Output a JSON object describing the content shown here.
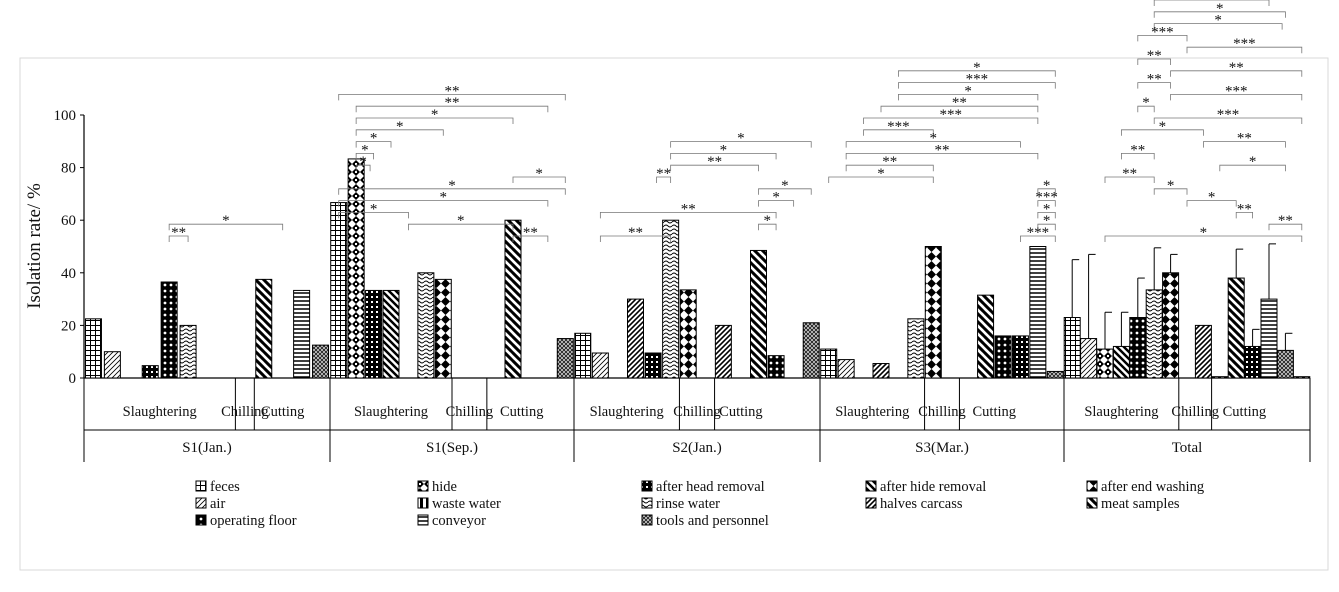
{
  "chart_data": {
    "type": "bar",
    "title": "",
    "ylabel": "Isolation rate/ %",
    "xlabel": "",
    "ylim": [
      0,
      100
    ],
    "yticks": [
      "0",
      "20",
      "40",
      "60",
      "80",
      "100"
    ],
    "legend_position": "bottom",
    "series_names": [
      "feces",
      "hide",
      "after head removal",
      "after hide removal",
      "after end washing",
      "air",
      "waste water",
      "rinse water",
      "halves carcass",
      "meat samples",
      "operating floor",
      "conveyor",
      "tools and personnel"
    ],
    "series_colors": [
      "#000000",
      "#000000",
      "#000000",
      "#000000",
      "#000000",
      "#000000",
      "#000000",
      "#000000",
      "#000000",
      "#000000",
      "#000000",
      "#000000",
      "#000000"
    ],
    "groups": [
      {
        "name": "S1(Jan.)",
        "stages": [
          {
            "name": "Slaughtering",
            "span": [
              0,
              7
            ]
          },
          {
            "name": "Chilling",
            "span": [
              8,
              8
            ]
          },
          {
            "name": "Cutting",
            "span": [
              9,
              11
            ]
          }
        ],
        "bars": [
          {
            "series": 0,
            "value": 22.5
          },
          {
            "series": 5,
            "value": 10
          },
          null,
          {
            "series": 2,
            "value": 4.7
          },
          {
            "series": 10,
            "value": 36.5
          },
          {
            "series": 7,
            "value": 20
          },
          null,
          null,
          null,
          {
            "series": 9,
            "value": 37.5
          },
          null,
          {
            "series": 11,
            "value": 33.3
          },
          {
            "series": 12,
            "value": 12.5
          }
        ],
        "significance": [
          {
            "from": 4,
            "to": 10,
            "label": "*"
          },
          {
            "from": 4,
            "to": 5,
            "label": "**"
          }
        ]
      },
      {
        "name": "S1(Sep.)",
        "stages": [
          {
            "name": "Slaughtering",
            "span": [
              0,
              6
            ]
          },
          {
            "name": "Chilling",
            "span": [
              7,
              8
            ]
          },
          {
            "name": "Cutting",
            "span": [
              9,
              12
            ]
          }
        ],
        "bars": [
          {
            "series": 0,
            "value": 66.7
          },
          {
            "series": 1,
            "value": 83.3
          },
          {
            "series": 2,
            "value": 33.3
          },
          {
            "series": 3,
            "value": 33.3
          },
          null,
          {
            "series": 7,
            "value": 40
          },
          {
            "series": 4,
            "value": 37.5
          },
          null,
          null,
          null,
          {
            "series": 9,
            "value": 60
          },
          null,
          null,
          {
            "series": 12,
            "value": 15
          }
        ],
        "significance": [
          {
            "from": 0,
            "to": 13,
            "label": "**"
          },
          {
            "from": 1,
            "to": 12,
            "label": "**"
          },
          {
            "from": 1,
            "to": 10,
            "label": "*"
          },
          {
            "from": 1,
            "to": 6,
            "label": "*"
          },
          {
            "from": 1,
            "to": 3,
            "label": "*"
          },
          {
            "from": 1,
            "to": 2,
            "label": "*"
          },
          {
            "from": 1,
            "to": 1.8,
            "label": "*"
          },
          {
            "from": 10,
            "to": 13,
            "label": "*"
          },
          {
            "from": 0,
            "to": 13,
            "label": "*"
          },
          {
            "from": 0,
            "to": 12,
            "label": "*"
          },
          {
            "from": 0,
            "to": 4,
            "label": "*"
          },
          {
            "from": 4,
            "to": 10,
            "label": "*"
          },
          {
            "from": 10,
            "to": 12,
            "label": "**"
          }
        ]
      },
      {
        "name": "S2(Jan.)",
        "stages": [
          {
            "name": "Slaughtering",
            "span": [
              0,
              5
            ]
          },
          {
            "name": "Chilling",
            "span": [
              6,
              7
            ]
          },
          {
            "name": "Cutting",
            "span": [
              8,
              10
            ]
          }
        ],
        "bars": [
          {
            "series": 0,
            "value": 17
          },
          {
            "series": 5,
            "value": 9.5
          },
          null,
          {
            "series": 8,
            "value": 30
          },
          {
            "series": 2,
            "value": 9.5
          },
          {
            "series": 7,
            "value": 60
          },
          {
            "series": 4,
            "value": 33.5
          },
          null,
          {
            "series": 8,
            "value": 20
          },
          null,
          {
            "series": 9,
            "value": 48.5
          },
          {
            "series": 10,
            "value": 8.5
          },
          null,
          {
            "series": 12,
            "value": 21
          }
        ],
        "significance": [
          {
            "from": 5,
            "to": 13,
            "label": "*"
          },
          {
            "from": 5,
            "to": 11,
            "label": "*"
          },
          {
            "from": 5,
            "to": 10,
            "label": "**"
          },
          {
            "from": 5,
            "to": 4.2,
            "label": "**"
          },
          {
            "from": 10,
            "to": 13,
            "label": "*"
          },
          {
            "from": 10,
            "to": 12,
            "label": "*"
          },
          {
            "from": 1,
            "to": 11,
            "label": "**"
          },
          {
            "from": 10,
            "to": 11,
            "label": "*"
          },
          {
            "from": 1,
            "to": 5,
            "label": "**"
          }
        ]
      },
      {
        "name": "S3(Mar.)",
        "stages": [
          {
            "name": "Slaughtering",
            "span": [
              0,
              5
            ]
          },
          {
            "name": "Chilling",
            "span": [
              6,
              7
            ]
          },
          {
            "name": "Cutting",
            "span": [
              8,
              11
            ]
          }
        ],
        "bars": [
          {
            "series": 0,
            "value": 11
          },
          {
            "series": 5,
            "value": 7
          },
          null,
          {
            "series": 8,
            "value": 5.5
          },
          null,
          {
            "series": 7,
            "value": 22.5
          },
          {
            "series": 4,
            "value": 50
          },
          null,
          null,
          {
            "series": 9,
            "value": 31.5
          },
          {
            "series": 10,
            "value": 16
          },
          {
            "series": 2,
            "value": 16
          },
          {
            "series": 11,
            "value": 50
          },
          {
            "series": 12,
            "value": 2.5
          }
        ],
        "significance": [
          {
            "from": 4,
            "to": 13,
            "label": "*"
          },
          {
            "from": 4,
            "to": 13,
            "label": "***"
          },
          {
            "from": 4,
            "to": 12,
            "label": "*"
          },
          {
            "from": 3,
            "to": 12,
            "label": "**"
          },
          {
            "from": 2,
            "to": 12,
            "label": "***"
          },
          {
            "from": 2,
            "to": 6,
            "label": "***"
          },
          {
            "from": 1,
            "to": 11,
            "label": "*"
          },
          {
            "from": 1,
            "to": 12,
            "label": "**"
          },
          {
            "from": 1,
            "to": 6,
            "label": "**"
          },
          {
            "from": 0,
            "to": 6,
            "label": "*"
          },
          {
            "from": 12,
            "to": 13,
            "label": "*"
          },
          {
            "from": 12,
            "to": 13,
            "label": "***"
          },
          {
            "from": 12,
            "to": 13,
            "label": "*"
          },
          {
            "from": 12,
            "to": 13,
            "label": "*"
          },
          {
            "from": 11,
            "to": 13,
            "label": "***"
          }
        ]
      },
      {
        "name": "Total",
        "stages": [
          {
            "name": "Slaughtering",
            "span": [
              0,
              6
            ]
          },
          {
            "name": "Chilling",
            "span": [
              7,
              8
            ]
          },
          {
            "name": "Cutting",
            "span": [
              9,
              12
            ]
          }
        ],
        "bars": [
          {
            "series": 0,
            "value": 23,
            "err": 22
          },
          {
            "series": 5,
            "value": 15,
            "err": 32
          },
          {
            "series": 1,
            "value": 11,
            "err": 14
          },
          {
            "series": 3,
            "value": 12,
            "err": 13
          },
          {
            "series": 10,
            "value": 23,
            "err": 15
          },
          {
            "series": 7,
            "value": 33.5,
            "err": 16
          },
          {
            "series": 4,
            "value": 40,
            "err": 7
          },
          null,
          {
            "series": 8,
            "value": 20
          },
          {
            "series": 6,
            "value": 0.5
          },
          {
            "series": 9,
            "value": 38,
            "err": 11
          },
          {
            "series": 2,
            "value": 12,
            "err": 6.5
          },
          {
            "series": 11,
            "value": 30,
            "err": 21
          },
          {
            "series": 12,
            "value": 10.5,
            "err": 6.5
          },
          {
            "series": 6,
            "value": 0.5
          }
        ],
        "significance": [
          {
            "from": 6,
            "to": 14,
            "label": "**"
          },
          {
            "from": 6,
            "to": 13,
            "label": "**"
          },
          {
            "from": 6,
            "to": 12,
            "label": "*"
          },
          {
            "from": 5,
            "to": 12,
            "label": "*"
          },
          {
            "from": 5,
            "to": 13,
            "label": "*"
          },
          {
            "from": 5,
            "to": 12.8,
            "label": "*"
          },
          {
            "from": 4,
            "to": 7,
            "label": "***"
          },
          {
            "from": 7,
            "to": 14,
            "label": "***"
          },
          {
            "from": 4,
            "to": 6,
            "label": "**"
          },
          {
            "from": 6,
            "to": 14,
            "label": "**"
          },
          {
            "from": 4,
            "to": 6,
            "label": "**"
          },
          {
            "from": 6,
            "to": 14,
            "label": "***"
          },
          {
            "from": 4,
            "to": 5,
            "label": "*"
          },
          {
            "from": 5,
            "to": 14,
            "label": "***"
          },
          {
            "from": 3,
            "to": 8,
            "label": "*"
          },
          {
            "from": 8,
            "to": 13,
            "label": "**"
          },
          {
            "from": 3,
            "to": 5,
            "label": "**"
          },
          {
            "from": 9,
            "to": 13,
            "label": "*"
          },
          {
            "from": 2,
            "to": 5,
            "label": "**"
          },
          {
            "from": 5,
            "to": 7,
            "label": "*"
          },
          {
            "from": 7,
            "to": 10,
            "label": "*"
          },
          {
            "from": 10,
            "to": 11,
            "label": "**"
          },
          {
            "from": 12,
            "to": 14,
            "label": "**"
          },
          {
            "from": 2,
            "to": 14,
            "label": "*"
          }
        ]
      }
    ]
  }
}
